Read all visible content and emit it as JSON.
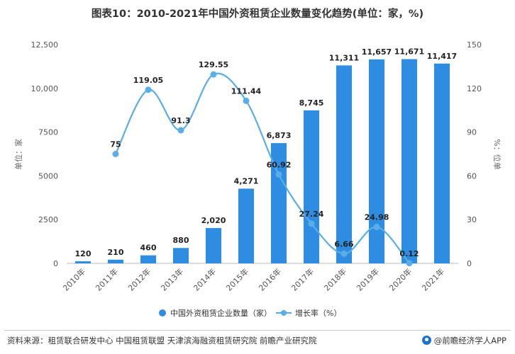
{
  "title": "图表10：2010-2021年中国外资租赁企业数量变化趋势(单位：家，%)",
  "source": "资料来源：租赁联合研发中心 中国租赁联盟 天津滨海融资租赁研究院 前瞻产业研究院",
  "brand": "@前瞻经济学人APP",
  "colors": {
    "bar": "#2e8de0",
    "line": "#5aaee8"
  },
  "icons": {
    "brand_logo": "circle-logo-icon"
  },
  "chart_data": {
    "type": "bar",
    "categories": [
      "2010年",
      "2011年",
      "2012年",
      "2013年",
      "2014年",
      "2015年",
      "2016年",
      "2017年",
      "2018年",
      "2019年",
      "2020年",
      "2021年"
    ],
    "series": [
      {
        "name": "中国外资租赁企业数量（家）",
        "type": "bar",
        "axis": "left",
        "values": [
          120,
          210,
          460,
          880,
          2020,
          4271,
          6873,
          8745,
          11311,
          11657,
          11671,
          11417
        ],
        "labels": [
          "120",
          "210",
          "460",
          "880",
          "2,020",
          "4,271",
          "6,873",
          "8,745",
          "11,311",
          "11,657",
          "11,671",
          "11,417"
        ]
      },
      {
        "name": "增长率（%）",
        "type": "line",
        "axis": "right",
        "values": [
          null,
          75,
          119.05,
          91.3,
          129.55,
          111.44,
          60.92,
          27.24,
          6.66,
          24.98,
          0.12,
          null
        ],
        "labels": [
          "",
          "75",
          "119.05",
          "91.3",
          "129.55",
          "111.44",
          "60.92",
          "27.24",
          "6.66",
          "24.98",
          "0.12",
          ""
        ]
      }
    ],
    "ylabel": "单位：家",
    "y2label": "%：位单",
    "ylim": [
      0,
      12500
    ],
    "y2lim": [
      0,
      150
    ],
    "yticks": [
      "0",
      "2500",
      "5000",
      "7500",
      "10,000",
      "12,500"
    ],
    "yticks_values": [
      0,
      2500,
      5000,
      7500,
      10000,
      12500
    ],
    "y2ticks": [
      "0",
      "30",
      "60",
      "90",
      "120",
      "150"
    ],
    "y2ticks_values": [
      0,
      30,
      60,
      90,
      120,
      150
    ],
    "legend_position": "bottom",
    "grid": false
  }
}
